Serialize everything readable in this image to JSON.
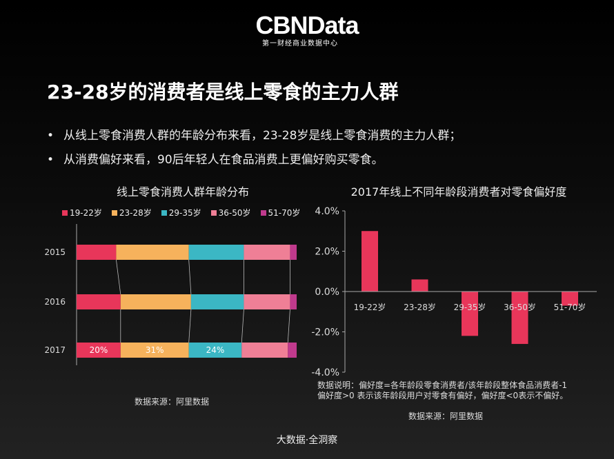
{
  "logo": {
    "brand": "CBNData",
    "subtitle": "第一财经商业数据中心"
  },
  "title": "23-28岁的消费者是线上零食的主力人群",
  "bullets": [
    "从线上零食消费人群的年龄分布来看，23-28岁是线上零食消费的主力人群；",
    "从消费偏好来看，90后年轻人在食品消费上更偏好购买零食。"
  ],
  "bullet_marker": "•",
  "colors": {
    "19-22岁": "#e8365a",
    "23-28岁": "#f6b25c",
    "29-35岁": "#3bb7c4",
    "36-50岁": "#ef7f96",
    "51-70岁": "#c03a8d"
  },
  "left_source": "数据来源：阿里数据",
  "right_note": [
    "数据说明：偏好度=各年龄段零食消费者/该年龄段整体食品消费者-1",
    "偏好度>0 表示该年龄段用户对零食有偏好，偏好度<0表示不偏好。"
  ],
  "right_source": "数据来源：阿里数据",
  "footer": "大数据·全洞察",
  "chart_data": [
    {
      "type": "bar",
      "orientation": "horizontal",
      "stacked": true,
      "percent": true,
      "title": "线上零食消费人群年龄分布",
      "legend": "top",
      "categories": [
        "2015",
        "2016",
        "2017"
      ],
      "series": [
        {
          "name": "19-22岁",
          "values": [
            18,
            20,
            20
          ]
        },
        {
          "name": "23-28岁",
          "values": [
            33,
            32,
            31
          ]
        },
        {
          "name": "29-35岁",
          "values": [
            25,
            24,
            24
          ]
        },
        {
          "name": "36-50岁",
          "values": [
            21,
            21,
            21
          ]
        },
        {
          "name": "51-70岁",
          "values": [
            3,
            3,
            4
          ]
        }
      ],
      "data_labels": {
        "2017": [
          "20%",
          "31%",
          "24%",
          "",
          ""
        ]
      }
    },
    {
      "type": "bar",
      "title": "2017年线上不同年龄段消费者对零食偏好度",
      "categories": [
        "19-22岁",
        "23-28岁",
        "29-35岁",
        "36-50岁",
        "51-70岁"
      ],
      "values": [
        3.0,
        0.6,
        -2.2,
        -2.6,
        -0.7
      ],
      "ylim": [
        -4,
        4
      ],
      "yticks": [
        "4.0%",
        "2.0%",
        "0.0%",
        "-2.0%",
        "-4.0%"
      ],
      "yticks_values": [
        4,
        2,
        0,
        -2,
        -4
      ],
      "color": "#e8365a",
      "grid": false
    }
  ]
}
